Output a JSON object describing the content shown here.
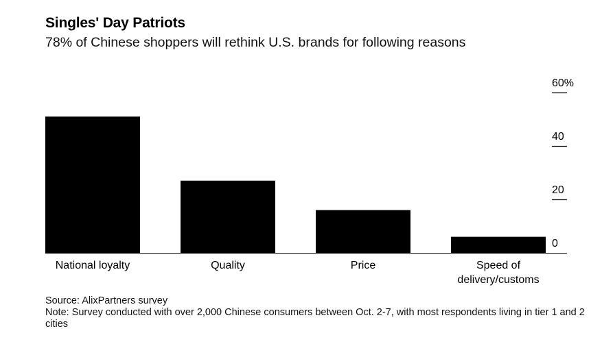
{
  "header": {
    "title": "Singles' Day Patriots",
    "subtitle": "78% of Chinese shoppers will rethink U.S. brands for following reasons"
  },
  "chart_data": {
    "type": "bar",
    "categories": [
      "National loyalty",
      "Quality",
      "Price",
      "Speed of delivery/customs"
    ],
    "category_lines": [
      [
        "National loyalty"
      ],
      [
        "Quality"
      ],
      [
        "Price"
      ],
      [
        "Speed of",
        "delivery/customs"
      ]
    ],
    "values": [
      51,
      27,
      16,
      6
    ],
    "ylim": [
      0,
      60
    ],
    "yticks": [
      0,
      20,
      40,
      60
    ],
    "ytick_labels": [
      "0",
      "20",
      "40",
      "60%"
    ],
    "yaxis_position": "right",
    "grid": false,
    "bar_color": "#000000"
  },
  "footer": {
    "source": "Source: AlixPartners survey",
    "note": "Note: Survey conducted with over 2,000 Chinese consumers between Oct. 2-7, with most respondents living in tier 1 and 2 cities"
  }
}
